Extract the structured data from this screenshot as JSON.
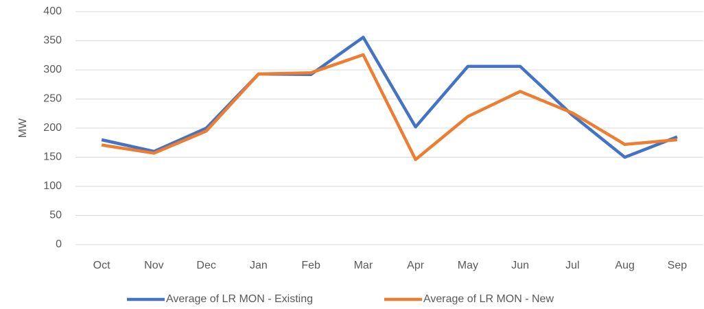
{
  "chart_data": {
    "type": "line",
    "y_label": "MW",
    "categories": [
      "Oct",
      "Nov",
      "Dec",
      "Jan",
      "Feb",
      "Mar",
      "Apr",
      "May",
      "Jun",
      "Jul",
      "Aug",
      "Sep"
    ],
    "series": [
      {
        "name": "Average of LR MON - Existing",
        "color": "#4472c4",
        "values": [
          180,
          160,
          200,
          293,
          292,
          356,
          202,
          306,
          306,
          222,
          150,
          185
        ]
      },
      {
        "name": "Average of LR MON - New",
        "color": "#ed7d31",
        "values": [
          171,
          157,
          195,
          293,
          295,
          326,
          146,
          220,
          263,
          226,
          172,
          180
        ]
      }
    ],
    "ylim": [
      0,
      400
    ],
    "yticks": [
      0,
      50,
      100,
      150,
      200,
      250,
      300,
      350,
      400
    ],
    "grid": true,
    "legend": "bottom"
  }
}
